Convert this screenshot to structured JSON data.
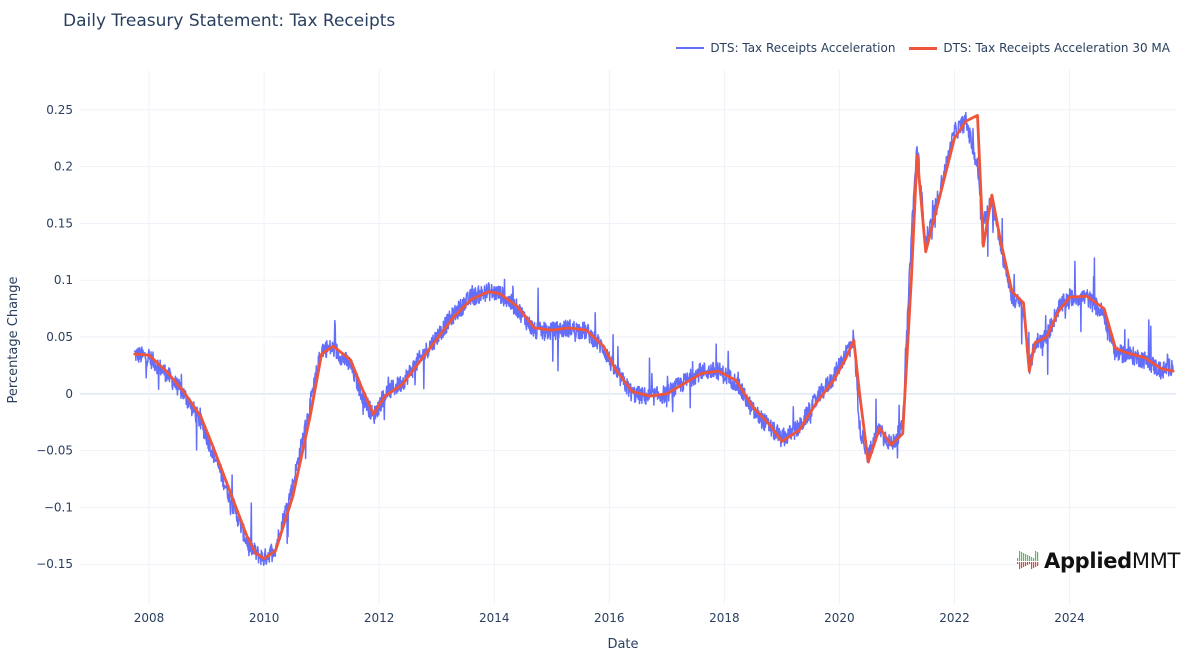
{
  "chart_data": {
    "type": "line",
    "title": "Daily Treasury Statement: Tax Receipts",
    "xlabel": "Date",
    "ylabel": "Percentage Change",
    "xlim": [
      2006.8,
      2025.85
    ],
    "ylim": [
      -0.185,
      0.285
    ],
    "x_ticks": [
      2008,
      2010,
      2012,
      2014,
      2016,
      2018,
      2020,
      2022,
      2024
    ],
    "y_ticks": [
      0.25,
      0.2,
      0.15,
      0.1,
      0.05,
      0,
      -0.05,
      -0.1,
      -0.15
    ],
    "y_tick_labels": [
      "0.25",
      "0.2",
      "0.15",
      "0.1",
      "0.05",
      "0",
      "−0.05",
      "−0.1",
      "−0.15"
    ],
    "legend_position": "top-right",
    "series": [
      {
        "name": "DTS: Tax Receipts Acceleration",
        "color": "#636efa",
        "style": "noisy-daily",
        "x": [
          2007.75,
          2008.0,
          2008.3,
          2008.6,
          2008.9,
          2009.1,
          2009.4,
          2009.7,
          2009.85,
          2010.0,
          2010.2,
          2010.5,
          2010.8,
          2011.0,
          2011.2,
          2011.5,
          2011.7,
          2011.9,
          2012.1,
          2012.4,
          2012.7,
          2013.0,
          2013.3,
          2013.6,
          2013.9,
          2014.1,
          2014.4,
          2014.7,
          2015.0,
          2015.3,
          2015.6,
          2015.9,
          2016.1,
          2016.4,
          2016.7,
          2017.0,
          2017.3,
          2017.6,
          2017.9,
          2018.2,
          2018.5,
          2018.8,
          2019.0,
          2019.3,
          2019.6,
          2019.9,
          2020.1,
          2020.25,
          2020.35,
          2020.5,
          2020.7,
          2020.9,
          2021.1,
          2021.25,
          2021.35,
          2021.5,
          2021.65,
          2021.8,
          2022.0,
          2022.2,
          2022.4,
          2022.5,
          2022.65,
          2022.8,
          2023.0,
          2023.2,
          2023.3,
          2023.4,
          2023.6,
          2023.8,
          2024.0,
          2024.3,
          2024.6,
          2024.8,
          2025.0,
          2025.3,
          2025.6,
          2025.8
        ],
        "values": [
          0.035,
          0.032,
          0.018,
          0.0,
          -0.025,
          -0.05,
          -0.09,
          -0.13,
          -0.14,
          -0.145,
          -0.135,
          -0.08,
          -0.01,
          0.04,
          0.04,
          0.025,
          0.0,
          -0.02,
          0.0,
          0.01,
          0.03,
          0.05,
          0.07,
          0.085,
          0.09,
          0.088,
          0.075,
          0.055,
          0.055,
          0.058,
          0.055,
          0.04,
          0.02,
          0.0,
          -0.003,
          0.0,
          0.01,
          0.02,
          0.02,
          0.01,
          -0.015,
          -0.03,
          -0.04,
          -0.03,
          -0.005,
          0.015,
          0.035,
          0.05,
          -0.03,
          -0.055,
          -0.03,
          -0.045,
          -0.03,
          0.14,
          0.22,
          0.13,
          0.16,
          0.19,
          0.23,
          0.24,
          0.2,
          0.15,
          0.17,
          0.13,
          0.085,
          0.075,
          0.02,
          0.045,
          0.05,
          0.075,
          0.085,
          0.085,
          0.07,
          0.035,
          0.035,
          0.03,
          0.02,
          0.025
        ]
      },
      {
        "name": "DTS: Tax Receipts Acceleration 30 MA",
        "color": "#ef553b",
        "style": "smooth",
        "x": [
          2007.75,
          2008.0,
          2008.3,
          2008.6,
          2008.9,
          2009.1,
          2009.4,
          2009.7,
          2009.85,
          2010.0,
          2010.2,
          2010.5,
          2010.8,
          2011.0,
          2011.2,
          2011.5,
          2011.7,
          2011.9,
          2012.1,
          2012.4,
          2012.7,
          2013.0,
          2013.3,
          2013.6,
          2013.9,
          2014.1,
          2014.4,
          2014.7,
          2015.0,
          2015.3,
          2015.6,
          2015.9,
          2016.1,
          2016.4,
          2016.7,
          2017.0,
          2017.3,
          2017.6,
          2017.9,
          2018.2,
          2018.5,
          2018.8,
          2019.0,
          2019.3,
          2019.6,
          2019.9,
          2020.1,
          2020.25,
          2020.35,
          2020.5,
          2020.7,
          2020.9,
          2021.1,
          2021.25,
          2021.35,
          2021.5,
          2021.65,
          2021.8,
          2022.0,
          2022.2,
          2022.4,
          2022.5,
          2022.65,
          2022.8,
          2023.0,
          2023.2,
          2023.3,
          2023.4,
          2023.6,
          2023.8,
          2024.0,
          2024.3,
          2024.6,
          2024.8,
          2025.0,
          2025.3,
          2025.6,
          2025.8
        ],
        "values": [
          0.035,
          0.034,
          0.02,
          0.002,
          -0.02,
          -0.045,
          -0.085,
          -0.125,
          -0.14,
          -0.145,
          -0.138,
          -0.09,
          -0.02,
          0.035,
          0.042,
          0.03,
          0.005,
          -0.018,
          -0.002,
          0.008,
          0.028,
          0.048,
          0.068,
          0.083,
          0.09,
          0.088,
          0.077,
          0.058,
          0.056,
          0.058,
          0.056,
          0.042,
          0.022,
          0.002,
          -0.002,
          0.0,
          0.009,
          0.018,
          0.02,
          0.012,
          -0.012,
          -0.028,
          -0.042,
          -0.032,
          -0.008,
          0.012,
          0.03,
          0.047,
          0.0,
          -0.06,
          -0.03,
          -0.045,
          -0.035,
          0.1,
          0.21,
          0.125,
          0.155,
          0.185,
          0.225,
          0.24,
          0.245,
          0.13,
          0.175,
          0.135,
          0.09,
          0.08,
          0.02,
          0.045,
          0.05,
          0.072,
          0.085,
          0.086,
          0.075,
          0.04,
          0.036,
          0.032,
          0.022,
          0.02
        ]
      }
    ]
  },
  "logo": {
    "bold": "Applied",
    "regular": "MMT"
  }
}
